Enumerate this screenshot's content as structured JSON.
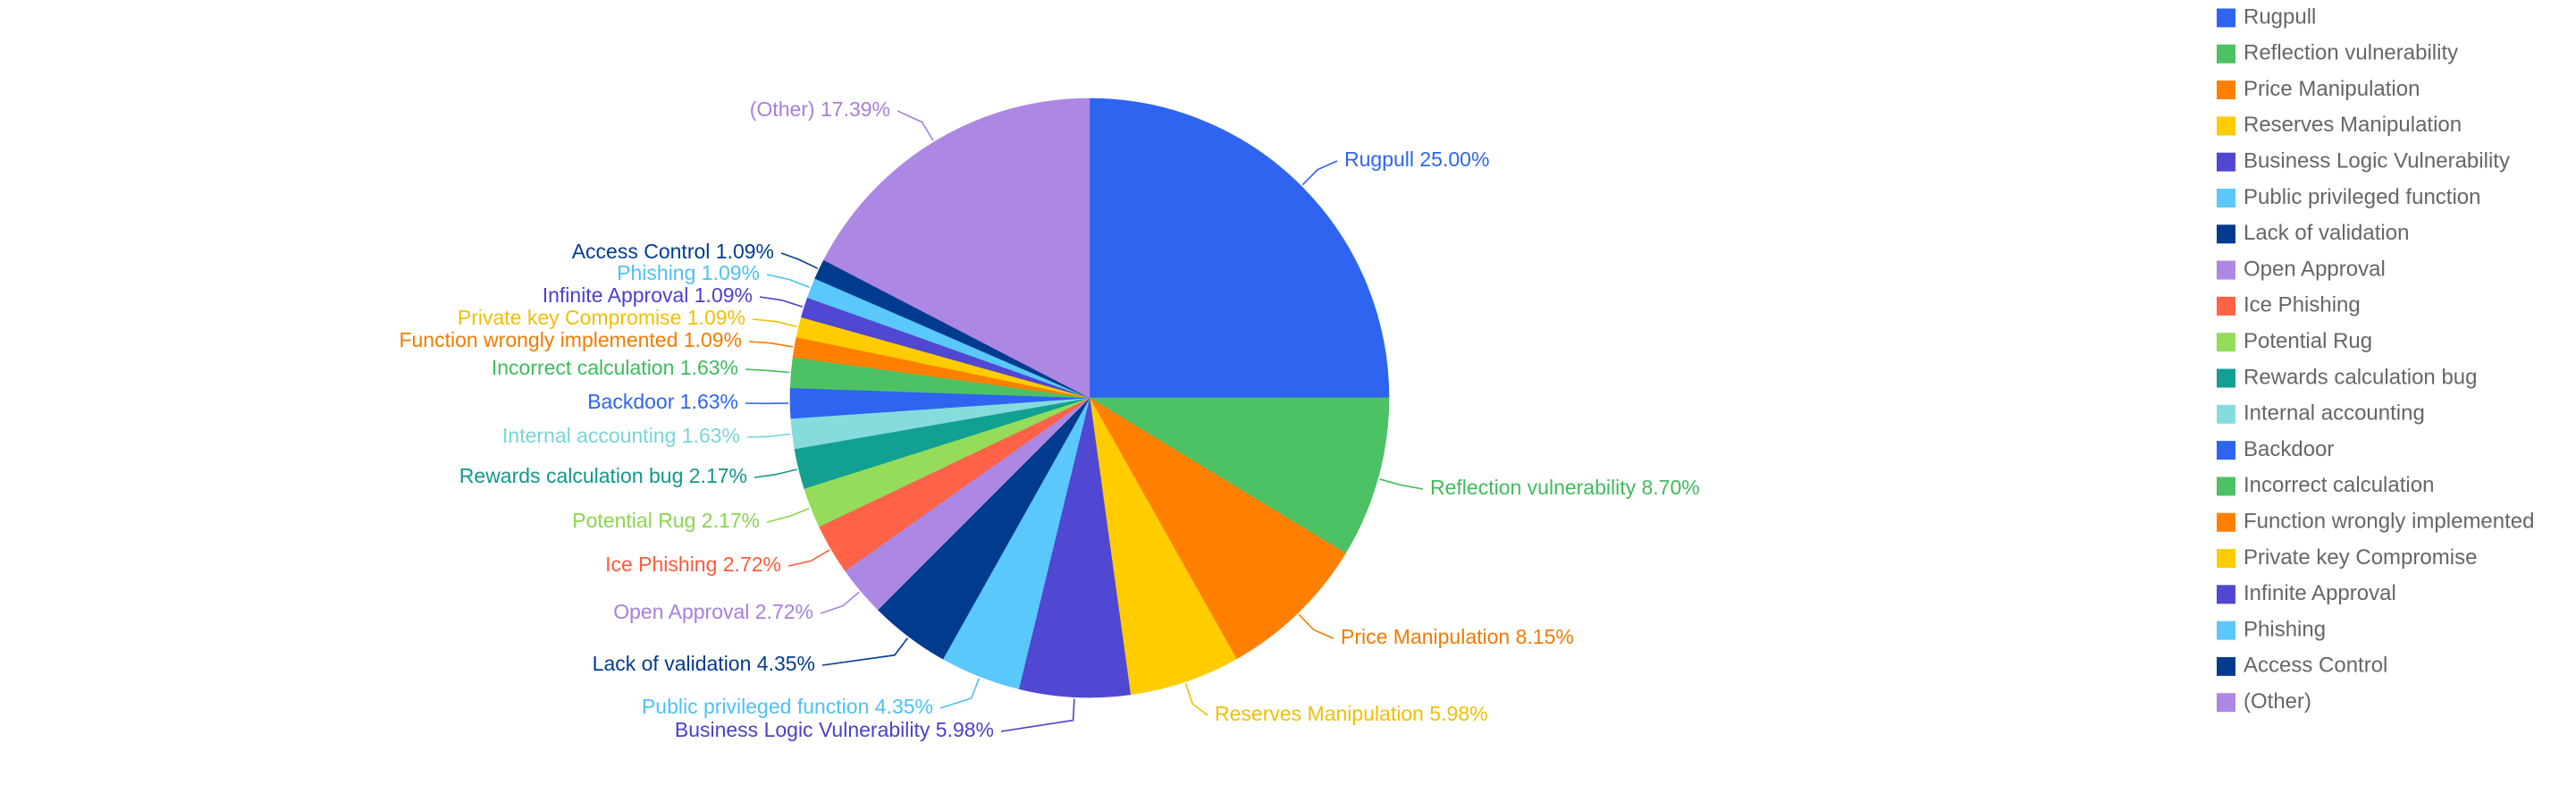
{
  "chart_data": {
    "type": "pie",
    "title": "",
    "start_angle_deg": 0,
    "direction": "clockwise",
    "legend_position": "right",
    "label_format": "{name} {percent}%",
    "slices": [
      {
        "name": "Rugpull",
        "percent": "25.00",
        "value": 25.0,
        "color": "#2e64f0",
        "label_color": "#2e64f0"
      },
      {
        "name": "Reflection vulnerability",
        "percent": "8.70",
        "value": 8.7,
        "color": "#4cc265",
        "label_color": "#3fbb5c"
      },
      {
        "name": "Price Manipulation",
        "percent": "8.15",
        "value": 8.15,
        "color": "#ff8000",
        "label_color": "#f27b00"
      },
      {
        "name": "Reserves Manipulation",
        "percent": "5.98",
        "value": 5.98,
        "color": "#ffcc00",
        "label_color": "#f0c000"
      },
      {
        "name": "Business Logic Vulnerability",
        "percent": "5.98",
        "value": 5.98,
        "color": "#5047d2",
        "label_color": "#4a41cc"
      },
      {
        "name": "Public privileged function",
        "percent": "4.35",
        "value": 4.35,
        "color": "#5ac8fa",
        "label_color": "#4ec0f5"
      },
      {
        "name": "Lack of validation",
        "percent": "4.35",
        "value": 4.35,
        "color": "#013b8f",
        "label_color": "#013b8f"
      },
      {
        "name": "Open Approval",
        "percent": "2.72",
        "value": 2.72,
        "color": "#ad87e4",
        "label_color": "#a77fe0"
      },
      {
        "name": "Ice Phishing",
        "percent": "2.72",
        "value": 2.72,
        "color": "#ff6347",
        "label_color": "#ff5a3c"
      },
      {
        "name": "Potential Rug",
        "percent": "2.17",
        "value": 2.17,
        "color": "#94dc5a",
        "label_color": "#8ad64e"
      },
      {
        "name": "Rewards calculation bug",
        "percent": "2.17",
        "value": 2.17,
        "color": "#11a091",
        "label_color": "#119889"
      },
      {
        "name": "Internal accounting",
        "percent": "1.63",
        "value": 1.63,
        "color": "#86dbdc",
        "label_color": "#7ad5d6"
      },
      {
        "name": "Backdoor",
        "percent": "1.63",
        "value": 1.63,
        "color": "#2e64f0",
        "label_color": "#2e64f0"
      },
      {
        "name": "Incorrect calculation",
        "percent": "1.63",
        "value": 1.63,
        "color": "#4cc265",
        "label_color": "#3fbb5c"
      },
      {
        "name": "Function wrongly implemented",
        "percent": "1.09",
        "value": 1.09,
        "color": "#ff8000",
        "label_color": "#f27b00"
      },
      {
        "name": "Private key Compromise",
        "percent": "1.09",
        "value": 1.09,
        "color": "#ffcc00",
        "label_color": "#f0c000"
      },
      {
        "name": "Infinite Approval",
        "percent": "1.09",
        "value": 1.09,
        "color": "#5047d2",
        "label_color": "#4a41cc"
      },
      {
        "name": "Phishing",
        "percent": "1.09",
        "value": 1.09,
        "color": "#5ac8fa",
        "label_color": "#4ec0f5"
      },
      {
        "name": "Access Control",
        "percent": "1.09",
        "value": 1.09,
        "color": "#013b8f",
        "label_color": "#013b8f"
      },
      {
        "name": "(Other)",
        "percent": "17.39",
        "value": 17.39,
        "color": "#ad87e4",
        "label_color": "#a77fe0"
      }
    ]
  }
}
